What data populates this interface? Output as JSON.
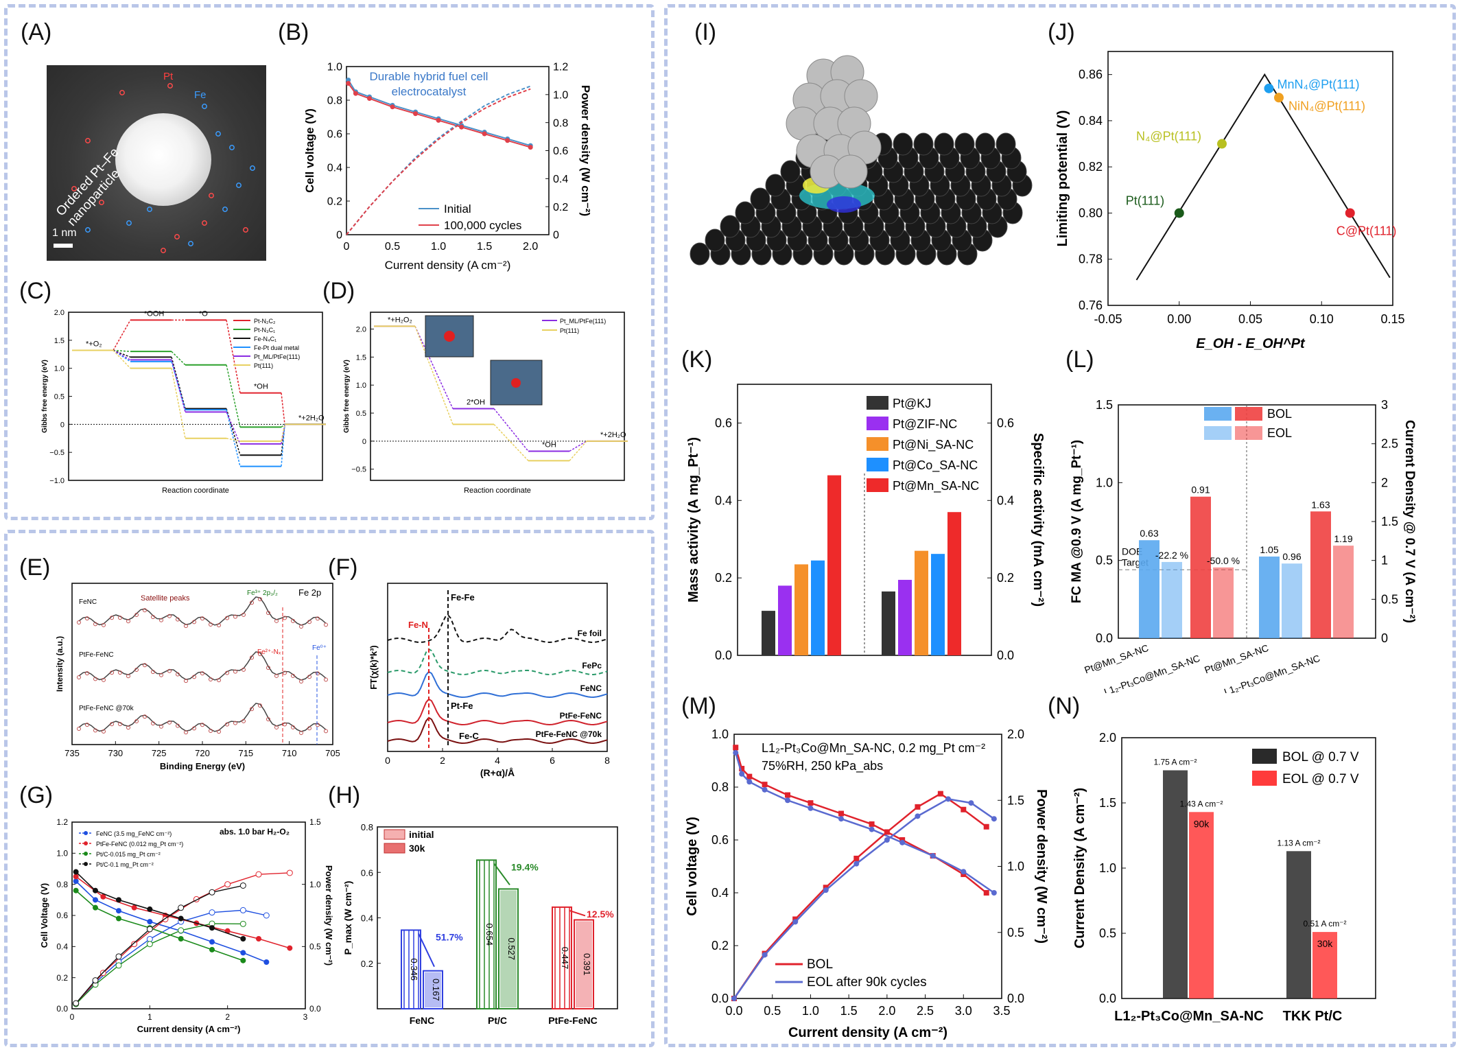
{
  "panels": {
    "A": {
      "label": "(A)",
      "nanoparticle": "Ordered Pt–Fe nanoparticle",
      "pt": "Pt",
      "fe": "Fe",
      "scale": "1 nm"
    },
    "B": {
      "label": "(B)",
      "annotation": "Durable hybrid fuel cell electrocatalyst"
    },
    "C": {
      "label": "(C)"
    },
    "D": {
      "label": "(D)"
    },
    "E": {
      "label": "(E)"
    },
    "F": {
      "label": "(F)"
    },
    "G": {
      "label": "(G)"
    },
    "H": {
      "label": "(H)"
    },
    "I": {
      "label": "(I)"
    },
    "J": {
      "label": "(J)"
    },
    "K": {
      "label": "(K)"
    },
    "L": {
      "label": "(L)"
    },
    "M": {
      "label": "(M)"
    },
    "N": {
      "label": "(N)"
    }
  },
  "colors": {
    "blue": "#2f6fd6",
    "red": "#e0222c",
    "green": "#2a8a2a",
    "purple": "#8a2be2",
    "orange": "#f5a623",
    "lightblue": "#1e90ff",
    "black": "#111111"
  },
  "chart_data": [
    {
      "id": "B",
      "type": "line",
      "xlabel": "Current density (A cm⁻²)",
      "ylabel": "Cell voltage (V)",
      "y2label": "Power density (W cm⁻²)",
      "xlim": [
        0,
        2.2
      ],
      "ylim": [
        0,
        1.0
      ],
      "y2lim": [
        0,
        1.2
      ],
      "xticks": [
        "0",
        "0.5",
        "1.0",
        "1.5",
        "2.0"
      ],
      "yticks": [
        "0",
        "0.2",
        "0.4",
        "0.6",
        "0.8",
        "1.0"
      ],
      "y2ticks": [
        "0",
        "0.2",
        "0.4",
        "0.6",
        "0.8",
        "1.0",
        "1.2"
      ],
      "legend": [
        "Initial",
        "100,000 cycles"
      ],
      "series": [
        {
          "name": "Initial",
          "color": "#4a90c8",
          "x": [
            0.02,
            0.1,
            0.25,
            0.5,
            0.75,
            1.0,
            1.25,
            1.5,
            1.75,
            2.0
          ],
          "y": [
            0.92,
            0.85,
            0.82,
            0.77,
            0.73,
            0.69,
            0.65,
            0.61,
            0.57,
            0.53
          ]
        },
        {
          "name": "100,000 cycles",
          "color": "#e0404a",
          "x": [
            0.02,
            0.1,
            0.25,
            0.5,
            0.75,
            1.0,
            1.25,
            1.5,
            1.75,
            2.0
          ],
          "y": [
            0.9,
            0.84,
            0.81,
            0.76,
            0.72,
            0.68,
            0.64,
            0.6,
            0.56,
            0.52
          ]
        },
        {
          "name": "Initial power",
          "color": "#4a90c8",
          "axis": "y2",
          "x": [
            0,
            0.25,
            0.5,
            0.75,
            1.0,
            1.25,
            1.5,
            1.75,
            2.0
          ],
          "y": [
            0,
            0.2,
            0.38,
            0.55,
            0.69,
            0.81,
            0.92,
            1.0,
            1.06
          ]
        },
        {
          "name": "100,000 cycles power",
          "color": "#e0404a",
          "axis": "y2",
          "x": [
            0,
            0.25,
            0.5,
            0.75,
            1.0,
            1.25,
            1.5,
            1.75,
            2.0
          ],
          "y": [
            0,
            0.2,
            0.38,
            0.54,
            0.68,
            0.8,
            0.9,
            0.98,
            1.04
          ]
        }
      ]
    },
    {
      "id": "C",
      "type": "line",
      "xlabel": "Reaction coordinate",
      "ylabel": "Gibbs free energy (eV)",
      "ylim": [
        -1.0,
        2.0
      ],
      "yticks": [
        "−1.0",
        "−0.5",
        "0",
        "0.5",
        "1.0",
        "1.5",
        "2.0"
      ],
      "states": [
        "*+O₂",
        "*OOH",
        "*O",
        "*OH",
        "*+2H₂O"
      ],
      "series": [
        {
          "name": "Pt-N₂C₂",
          "color": "#e0222c",
          "values": [
            1.32,
            1.86,
            1.86,
            0.56,
            0.0
          ]
        },
        {
          "name": "Pt-N₃C₁",
          "color": "#2aa02a",
          "values": [
            1.32,
            1.3,
            1.06,
            -0.05,
            0.0
          ]
        },
        {
          "name": "Fe-N₄C₁",
          "color": "#111111",
          "values": [
            1.32,
            1.2,
            0.28,
            -0.55,
            0.0
          ]
        },
        {
          "name": "Fe-Pt dual metal",
          "color": "#1e90ff",
          "values": [
            1.32,
            1.12,
            0.26,
            -0.75,
            0.0
          ]
        },
        {
          "name": "Pt_ML/PtFe(111)",
          "color": "#8a2be2",
          "values": [
            1.32,
            1.15,
            0.22,
            -0.35,
            0.0
          ]
        },
        {
          "name": "Pt(111)",
          "color": "#e8d060",
          "values": [
            1.32,
            1.0,
            -0.25,
            -0.3,
            0.0
          ]
        }
      ]
    },
    {
      "id": "D",
      "type": "line",
      "xlabel": "Reaction coordinate",
      "ylabel": "Gibbs free energy (eV)",
      "ylim": [
        -0.7,
        2.3
      ],
      "yticks": [
        "−0.5",
        "0",
        "0.5",
        "1.0",
        "1.5",
        "2.0"
      ],
      "states": [
        "*+H₂O₂",
        "2*OH",
        "*OH",
        "*+2H₂O"
      ],
      "series": [
        {
          "name": "Pt_ML/PtFe(111)",
          "color": "#8a2be2",
          "values": [
            2.05,
            0.58,
            -0.18,
            0.0
          ]
        },
        {
          "name": "Pt(111)",
          "color": "#e8d060",
          "values": [
            2.05,
            0.3,
            -0.35,
            0.0
          ]
        }
      ]
    },
    {
      "id": "E",
      "type": "line",
      "xlabel": "Binding Energy (eV)",
      "ylabel": "Intensity (a.u.)",
      "title": "Fe 2p",
      "xlim": [
        735,
        705
      ],
      "xticks": [
        "735",
        "730",
        "725",
        "720",
        "715",
        "710",
        "705"
      ],
      "annotations": [
        "FeNC",
        "Satellite peaks",
        "Fe³⁺ 2p₃/₂",
        "PtFe-FeNC",
        "Fe²⁺-Nₓ",
        "Fe⁰⁺",
        "PtFe-FeNC @70k"
      ]
    },
    {
      "id": "F",
      "type": "line",
      "xlabel": "(R+α)/Å",
      "ylabel": "FT(χ(k)*k³)",
      "xlim": [
        0,
        8
      ],
      "xticks": [
        "0",
        "2",
        "4",
        "6",
        "8"
      ],
      "series": [
        {
          "name": "Fe foil",
          "color": "#111111"
        },
        {
          "name": "FePc",
          "color": "#2a9a6a"
        },
        {
          "name": "FeNC",
          "color": "#2f6fd6"
        },
        {
          "name": "PtFe-FeNC",
          "color": "#d0222c"
        },
        {
          "name": "PtFe-FeNC @70k",
          "color": "#7a1010"
        }
      ],
      "annotations": [
        "Fe-Fe",
        "Fe-N",
        "Pt-Fe",
        "Fe-C"
      ]
    },
    {
      "id": "G",
      "type": "line",
      "xlabel": "Current density (A cm⁻²)",
      "ylabel": "Cell Voltage (V)",
      "y2label": "Power density (W cm⁻²)",
      "note": "abs. 1.0 bar H₂-O₂",
      "xlim": [
        0,
        3
      ],
      "ylim": [
        0,
        1.2
      ],
      "y2lim": [
        0,
        1.5
      ],
      "xticks": [
        "0",
        "1",
        "2",
        "3"
      ],
      "yticks": [
        "0.0",
        "0.2",
        "0.4",
        "0.6",
        "0.8",
        "1.0",
        "1.2"
      ],
      "y2ticks": [
        "0.0",
        "0.5",
        "1.0",
        "1.5"
      ],
      "series": [
        {
          "name": "FeNC (3.5 mg_FeNC cm⁻²)",
          "color": "#1e4fe0",
          "x": [
            0.05,
            0.3,
            0.6,
            1.0,
            1.4,
            1.8,
            2.2,
            2.5
          ],
          "y": [
            0.82,
            0.7,
            0.63,
            0.56,
            0.5,
            0.43,
            0.36,
            0.3
          ]
        },
        {
          "name": "PtFe-FeNC (0.012 mg_Pt cm⁻²)",
          "color": "#e0222c",
          "x": [
            0.05,
            0.4,
            0.8,
            1.2,
            1.6,
            2.0,
            2.4,
            2.8
          ],
          "y": [
            0.85,
            0.72,
            0.65,
            0.6,
            0.55,
            0.5,
            0.45,
            0.39
          ]
        },
        {
          "name": "Pt/C-0.015 mg_Pt cm⁻²",
          "color": "#1a8a1a",
          "x": [
            0.05,
            0.3,
            0.6,
            1.0,
            1.4,
            1.8,
            2.2
          ],
          "y": [
            0.76,
            0.65,
            0.58,
            0.52,
            0.45,
            0.38,
            0.31
          ]
        },
        {
          "name": "Pt/C-0.1 mg_Pt cm⁻²",
          "color": "#111111",
          "x": [
            0.05,
            0.3,
            0.6,
            1.0,
            1.4,
            1.8,
            2.2
          ],
          "y": [
            0.88,
            0.76,
            0.7,
            0.64,
            0.58,
            0.52,
            0.45
          ]
        }
      ]
    },
    {
      "id": "H",
      "type": "bar",
      "ylabel": "P_max (W cm⁻²)",
      "ylim": [
        0,
        0.8
      ],
      "yticks": [
        "0.2",
        "0.4",
        "0.6",
        "0.8"
      ],
      "categories": [
        "FeNC",
        "Pt/C",
        "PtFe-FeNC"
      ],
      "legend": [
        "initial",
        "30k"
      ],
      "series": [
        {
          "name": "initial",
          "values": [
            0.346,
            0.654,
            0.447
          ],
          "labels": [
            "0.346",
            "0.654",
            "0.447"
          ]
        },
        {
          "name": "30k",
          "values": [
            0.167,
            0.527,
            0.391
          ],
          "labels": [
            "0.167",
            "0.527",
            "0.391"
          ]
        }
      ],
      "colors": [
        "#2f3fe0",
        "#2a8a2a",
        "#e0222c"
      ],
      "drops": [
        "51.7%",
        "19.4%",
        "12.5%"
      ]
    },
    {
      "id": "J",
      "type": "scatter",
      "xlabel": "E_OH - E_OH^Pt",
      "ylabel": "Limiting potential (V)",
      "xlim": [
        -0.05,
        0.15
      ],
      "ylim": [
        0.76,
        0.87
      ],
      "xticks": [
        "-0.05",
        "0.00",
        "0.05",
        "0.10",
        "0.15"
      ],
      "yticks": [
        "0.76",
        "0.78",
        "0.80",
        "0.82",
        "0.84",
        "0.86"
      ],
      "points": [
        {
          "name": "Pt(111)",
          "x": 0.0,
          "y": 0.8,
          "color": "#1a5a1a"
        },
        {
          "name": "N₄@Pt(111)",
          "x": 0.03,
          "y": 0.83,
          "color": "#b8c020"
        },
        {
          "name": "MnN₄@Pt(111)",
          "x": 0.063,
          "y": 0.854,
          "color": "#1e9ff0"
        },
        {
          "name": "NiN₄@Pt(111)",
          "x": 0.07,
          "y": 0.85,
          "color": "#f0a020"
        },
        {
          "name": "C@Pt(111)",
          "x": 0.12,
          "y": 0.8,
          "color": "#e0222c"
        }
      ]
    },
    {
      "id": "K",
      "type": "bar",
      "ylabel": "Mass activity (A mg_Pt⁻¹)",
      "y2label": "Specific activity (mA cm⁻²)",
      "ylim": [
        0,
        0.7
      ],
      "yticks": [
        "0.0",
        "0.2",
        "0.4",
        "0.6"
      ],
      "y2ticks": [
        "0.0",
        "0.2",
        "0.4",
        "0.6"
      ],
      "categories": [
        "Mass activity",
        "Specific activity"
      ],
      "legend": [
        "Pt@KJ",
        "Pt@ZIF-NC",
        "Pt@Ni_SA-NC",
        "Pt@Co_SA-NC",
        "Pt@Mn_SA-NC"
      ],
      "series": [
        {
          "name": "Pt@KJ",
          "color": "#333333",
          "values": [
            0.115,
            0.165
          ]
        },
        {
          "name": "Pt@ZIF-NC",
          "color": "#9a30f0",
          "values": [
            0.18,
            0.195
          ]
        },
        {
          "name": "Pt@Ni_SA-NC",
          "color": "#f5902a",
          "values": [
            0.235,
            0.27
          ]
        },
        {
          "name": "Pt@Co_SA-NC",
          "color": "#1e90ff",
          "values": [
            0.245,
            0.262
          ]
        },
        {
          "name": "Pt@Mn_SA-NC",
          "color": "#ee2a2a",
          "values": [
            0.465,
            0.37
          ]
        }
      ]
    },
    {
      "id": "L",
      "type": "bar",
      "ylabel": "FC MA @0.9 V (A mg_Pt⁻¹)",
      "y2label": "Current Density @ 0.7 V (A cm⁻²)",
      "ylim": [
        0,
        1.5
      ],
      "yticks": [
        "0.0",
        "0.5",
        "1.0",
        "1.5"
      ],
      "y2lim": [
        0,
        3
      ],
      "y2ticks": [
        "0",
        "0.5",
        "1",
        "1.5",
        "2",
        "2.5",
        "3"
      ],
      "legend": [
        "BOL",
        "EOL"
      ],
      "doe": "DOE Target",
      "categories": [
        "Pt@Mn_SA-NC",
        "L1₂-Pt₃Co@Mn_SA-NC",
        "Pt@Mn_SA-NC",
        "L1₂-Pt₃Co@Mn_SA-NC"
      ],
      "bars": [
        {
          "label": "0.63",
          "value": 0.63,
          "kind": "BOL",
          "color": "#5aa8f0"
        },
        {
          "label": "-22.2 %",
          "value": 0.49,
          "kind": "EOL",
          "color": "#5aa8f0"
        },
        {
          "label": "0.91",
          "value": 0.91,
          "kind": "BOL",
          "color": "#f04040"
        },
        {
          "label": "-50.0 %",
          "value": 0.455,
          "kind": "EOL",
          "color": "#f04040"
        },
        {
          "label": "1.05",
          "value": 1.05,
          "kind": "BOL",
          "color": "#5aa8f0",
          "axis": "y2"
        },
        {
          "label": "0.96",
          "value": 0.96,
          "kind": "EOL",
          "color": "#5aa8f0",
          "axis": "y2"
        },
        {
          "label": "1.63",
          "value": 1.63,
          "kind": "BOL",
          "color": "#f04040",
          "axis": "y2"
        },
        {
          "label": "1.19",
          "value": 1.19,
          "kind": "EOL",
          "color": "#f04040",
          "axis": "y2"
        }
      ]
    },
    {
      "id": "M",
      "type": "line",
      "title": "L1₂-Pt₃Co@Mn_SA-NC, 0.2 mg_Pt cm⁻²",
      "subtitle": "75%RH, 250 kPa_abs",
      "xlabel": "Current density (A cm⁻²)",
      "ylabel": "Cell voltage (V)",
      "y2label": "Power density (W cm⁻²)",
      "xlim": [
        0,
        3.5
      ],
      "ylim": [
        0,
        1.0
      ],
      "y2lim": [
        0,
        2.0
      ],
      "xticks": [
        "0.0",
        "0.5",
        "1.0",
        "1.5",
        "2.0",
        "2.5",
        "3.0",
        "3.5"
      ],
      "yticks": [
        "0.0",
        "0.2",
        "0.4",
        "0.6",
        "0.8",
        "1.0"
      ],
      "y2ticks": [
        "0.0",
        "0.5",
        "1.0",
        "1.5",
        "2.0"
      ],
      "series": [
        {
          "name": "BOL",
          "color": "#e0222c",
          "x": [
            0.02,
            0.1,
            0.2,
            0.4,
            0.7,
            1.0,
            1.4,
            1.8,
            2.2,
            2.6,
            3.0,
            3.3
          ],
          "y": [
            0.95,
            0.87,
            0.84,
            0.81,
            0.77,
            0.74,
            0.7,
            0.66,
            0.6,
            0.54,
            0.47,
            0.4
          ]
        },
        {
          "name": "EOL after 90k cycles",
          "color": "#5a6ad0",
          "x": [
            0.02,
            0.1,
            0.2,
            0.4,
            0.7,
            1.0,
            1.4,
            1.8,
            2.2,
            2.6,
            3.0,
            3.4
          ],
          "y": [
            0.93,
            0.85,
            0.82,
            0.79,
            0.75,
            0.72,
            0.68,
            0.64,
            0.59,
            0.54,
            0.48,
            0.4
          ]
        },
        {
          "name": "BOL power",
          "color": "#e0222c",
          "axis": "y2",
          "x": [
            0,
            0.4,
            0.8,
            1.2,
            1.6,
            2.0,
            2.4,
            2.7,
            3.0,
            3.3
          ],
          "y": [
            0,
            0.34,
            0.6,
            0.84,
            1.06,
            1.26,
            1.45,
            1.55,
            1.43,
            1.3
          ]
        },
        {
          "name": "EOL power",
          "color": "#5a6ad0",
          "axis": "y2",
          "x": [
            0,
            0.4,
            0.8,
            1.2,
            1.6,
            2.0,
            2.4,
            2.8,
            3.1,
            3.4
          ],
          "y": [
            0,
            0.33,
            0.58,
            0.82,
            1.02,
            1.2,
            1.38,
            1.51,
            1.48,
            1.36
          ]
        }
      ]
    },
    {
      "id": "N",
      "type": "bar",
      "ylabel": "Current Density (A cm⁻²)",
      "ylim": [
        0,
        2.0
      ],
      "yticks": [
        "0.0",
        "0.5",
        "1.0",
        "1.5",
        "2.0"
      ],
      "categories": [
        "L1₂-Pt₃Co@Mn_SA-NC",
        "TKK Pt/C"
      ],
      "legend": [
        "BOL @ 0.7 V",
        "EOL @ 0.7 V"
      ],
      "series": [
        {
          "name": "BOL @ 0.7 V",
          "values": [
            1.75,
            1.13
          ],
          "labels": [
            "1.75 A cm⁻²",
            "1.13 A cm⁻²"
          ]
        },
        {
          "name": "EOL @ 0.7 V",
          "values": [
            1.43,
            0.51
          ],
          "labels": [
            "1.43 A cm⁻²",
            "0.51 A cm⁻²"
          ],
          "inner": [
            "90k",
            "30k"
          ]
        }
      ]
    }
  ]
}
